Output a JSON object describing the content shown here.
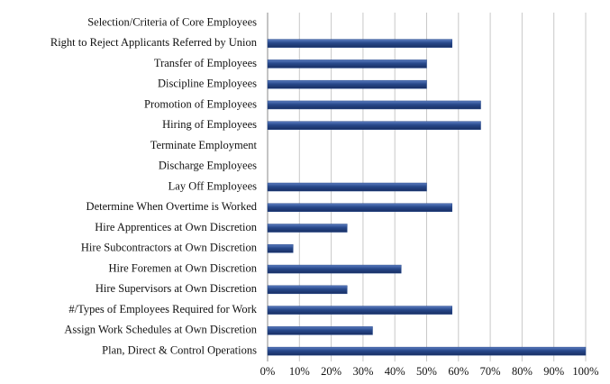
{
  "chart_data": {
    "type": "barh",
    "categories": [
      "Selection/Criteria of Core Employees",
      "Right to Reject Applicants Referred by Union",
      "Transfer of Employees",
      "Discipline Employees",
      "Promotion of Employees",
      "Hiring of Employees",
      "Terminate Employment",
      "Discharge Employees",
      "Lay Off Employees",
      "Determine When Overtime is Worked",
      "Hire Apprentices at Own Discretion",
      "Hire Subcontractors at Own Discretion",
      "Hire Foremen at Own Discretion",
      "Hire Supervisors at Own Discretion",
      "#/Types of Employees Required for Work",
      "Assign Work Schedules at Own Discretion",
      "Plan, Direct & Control Operations"
    ],
    "values": [
      0,
      58,
      50,
      50,
      67,
      67,
      0,
      0,
      50,
      58,
      25,
      8,
      42,
      25,
      58,
      33,
      100
    ],
    "color": "#27488a",
    "xlim": [
      0,
      100
    ],
    "xticks": [
      {
        "value": 0,
        "label": "0%"
      },
      {
        "value": 10,
        "label": "10%"
      },
      {
        "value": 20,
        "label": "20%"
      },
      {
        "value": 30,
        "label": "30%"
      },
      {
        "value": 40,
        "label": "40%"
      },
      {
        "value": 50,
        "label": "50%"
      },
      {
        "value": 60,
        "label": "60%"
      },
      {
        "value": 70,
        "label": "70%"
      },
      {
        "value": 80,
        "label": "80%"
      },
      {
        "value": 90,
        "label": "90%"
      },
      {
        "value": 100,
        "label": "100%"
      }
    ],
    "grid": true
  }
}
